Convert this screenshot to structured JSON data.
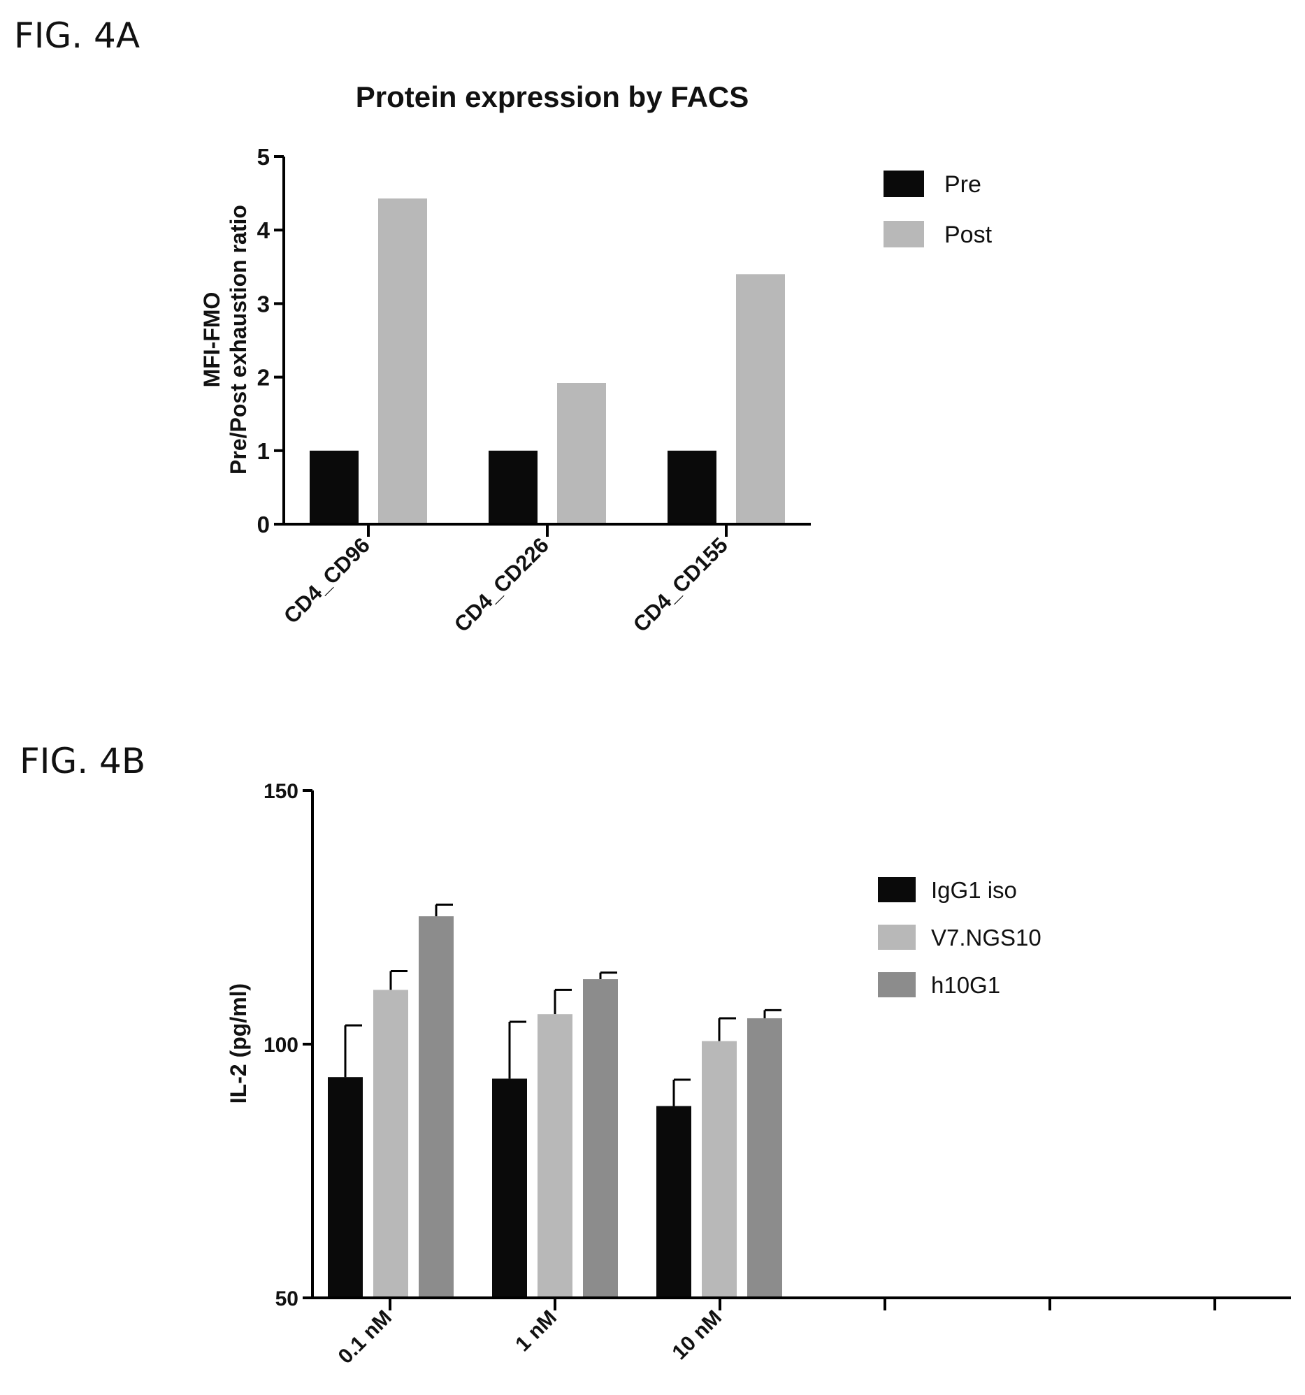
{
  "figures": {
    "a_label": "FIG. 4A",
    "b_label": "FIG. 4B"
  },
  "colors": {
    "black_bar": "#0a0a0a",
    "light_gray_bar": "#b8b8b8",
    "dark_gray_bar": "#8c8c8c",
    "axis": "#000000"
  },
  "chart_data": [
    {
      "type": "bar",
      "title": "Protein expression by FACS",
      "ylabel_lines": [
        "MFI-FMO",
        "Pre/Post exhaustion ratio"
      ],
      "xlabel": "",
      "categories": [
        "CD4_CD96",
        "CD4_CD226",
        "CD4_CD155"
      ],
      "ylim": [
        0,
        5
      ],
      "yticks": [
        "0",
        "1",
        "2",
        "3",
        "4",
        "5"
      ],
      "grid": false,
      "legend_position": "top-right",
      "series": [
        {
          "name": "Pre",
          "color": "#0a0a0a",
          "values": [
            1.0,
            1.0,
            1.0
          ]
        },
        {
          "name": "Post",
          "color": "#b8b8b8",
          "values": [
            4.43,
            1.92,
            3.4
          ]
        }
      ]
    },
    {
      "type": "bar",
      "title": "",
      "ylabel": "IL-2 (pg/ml)",
      "xlabel": "",
      "categories": [
        "0.1 nM",
        "1 nM",
        "10 nM"
      ],
      "extra_empty_ticks": 3,
      "ylim": [
        50,
        150
      ],
      "yticks": [
        "50",
        "100",
        "150"
      ],
      "grid": false,
      "legend_position": "right",
      "series": [
        {
          "name": "IgG1 iso",
          "color": "#0a0a0a",
          "values": [
            93.5,
            93.2,
            87.8
          ],
          "errors": [
            10.2,
            11.2,
            5.2
          ]
        },
        {
          "name": "V7.NGS10",
          "color": "#b8b8b8",
          "values": [
            110.7,
            105.9,
            100.6
          ],
          "errors": [
            3.7,
            4.8,
            4.5
          ]
        },
        {
          "name": "h10G1",
          "color": "#8c8c8c",
          "values": [
            125.2,
            112.8,
            105.1
          ],
          "errors": [
            2.3,
            1.3,
            1.6
          ]
        }
      ]
    }
  ]
}
